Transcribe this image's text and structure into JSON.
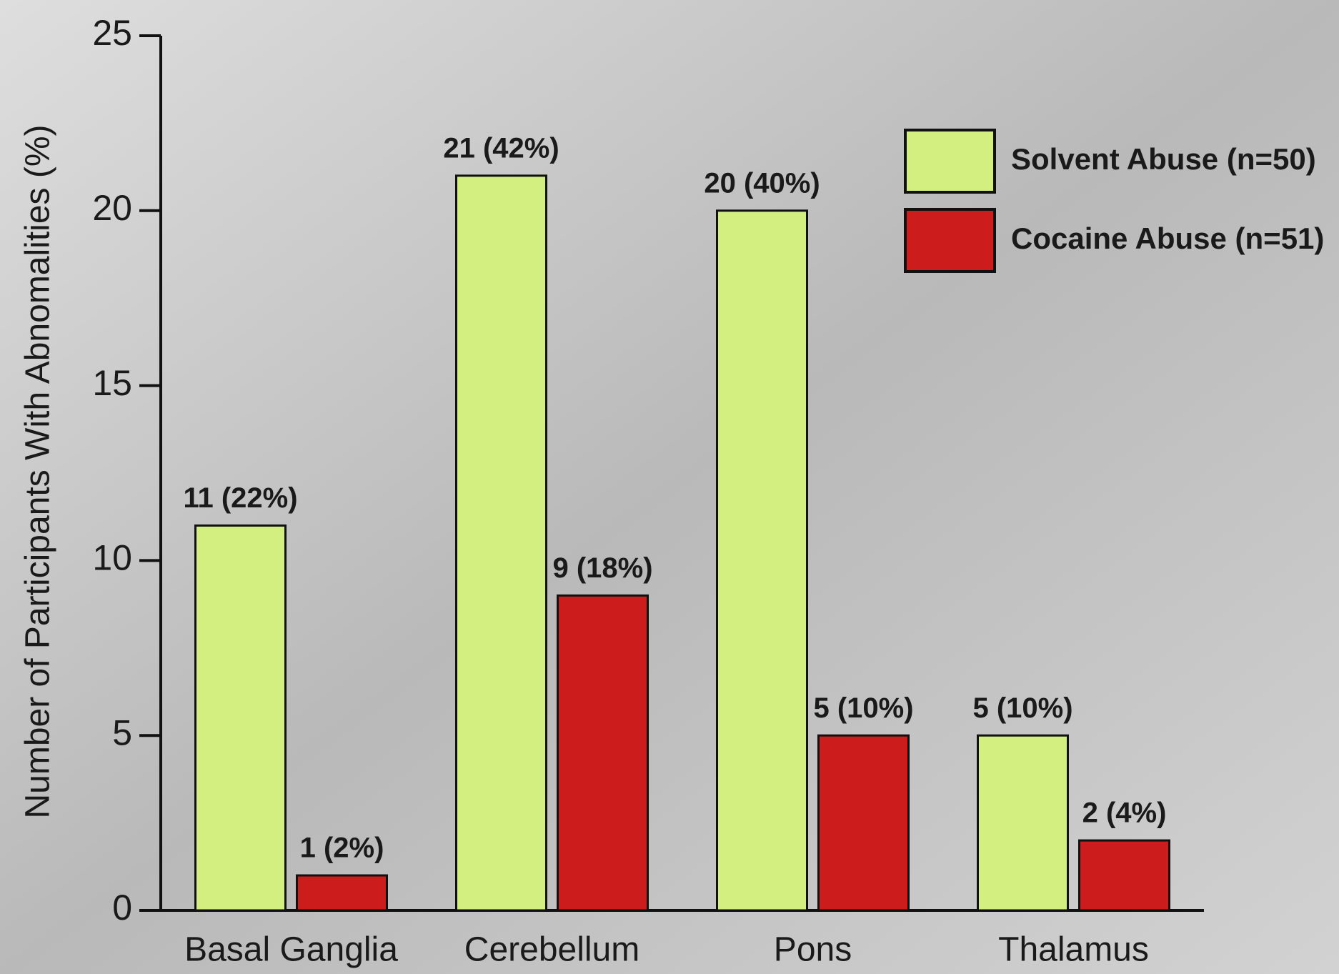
{
  "chart_data": {
    "type": "grouped_bar",
    "y_label": "Number of Participants With Abnomalities (%)",
    "categories": [
      "Basal Ganglia",
      "Cerebellum",
      "Pons",
      "Thalamus"
    ],
    "series": [
      {
        "name": "Solvent Abuse (n=50)",
        "color": "#d2ef80",
        "values": [
          11,
          21,
          20,
          5
        ],
        "value_labels": [
          "11 (22%)",
          "21 (42%)",
          "20 (40%)",
          "5 (10%)"
        ]
      },
      {
        "name": "Cocaine Abuse (n=51)",
        "color": "#cc1c1c",
        "values": [
          1,
          9,
          5,
          2
        ],
        "value_labels": [
          "1 (2%)",
          "9 (18%)",
          "5 (10%)",
          "2 (4%)"
        ]
      }
    ],
    "ylim": [
      0,
      25
    ],
    "yticks": [
      0,
      5,
      10,
      15,
      20,
      25
    ],
    "legend": "upper right"
  }
}
